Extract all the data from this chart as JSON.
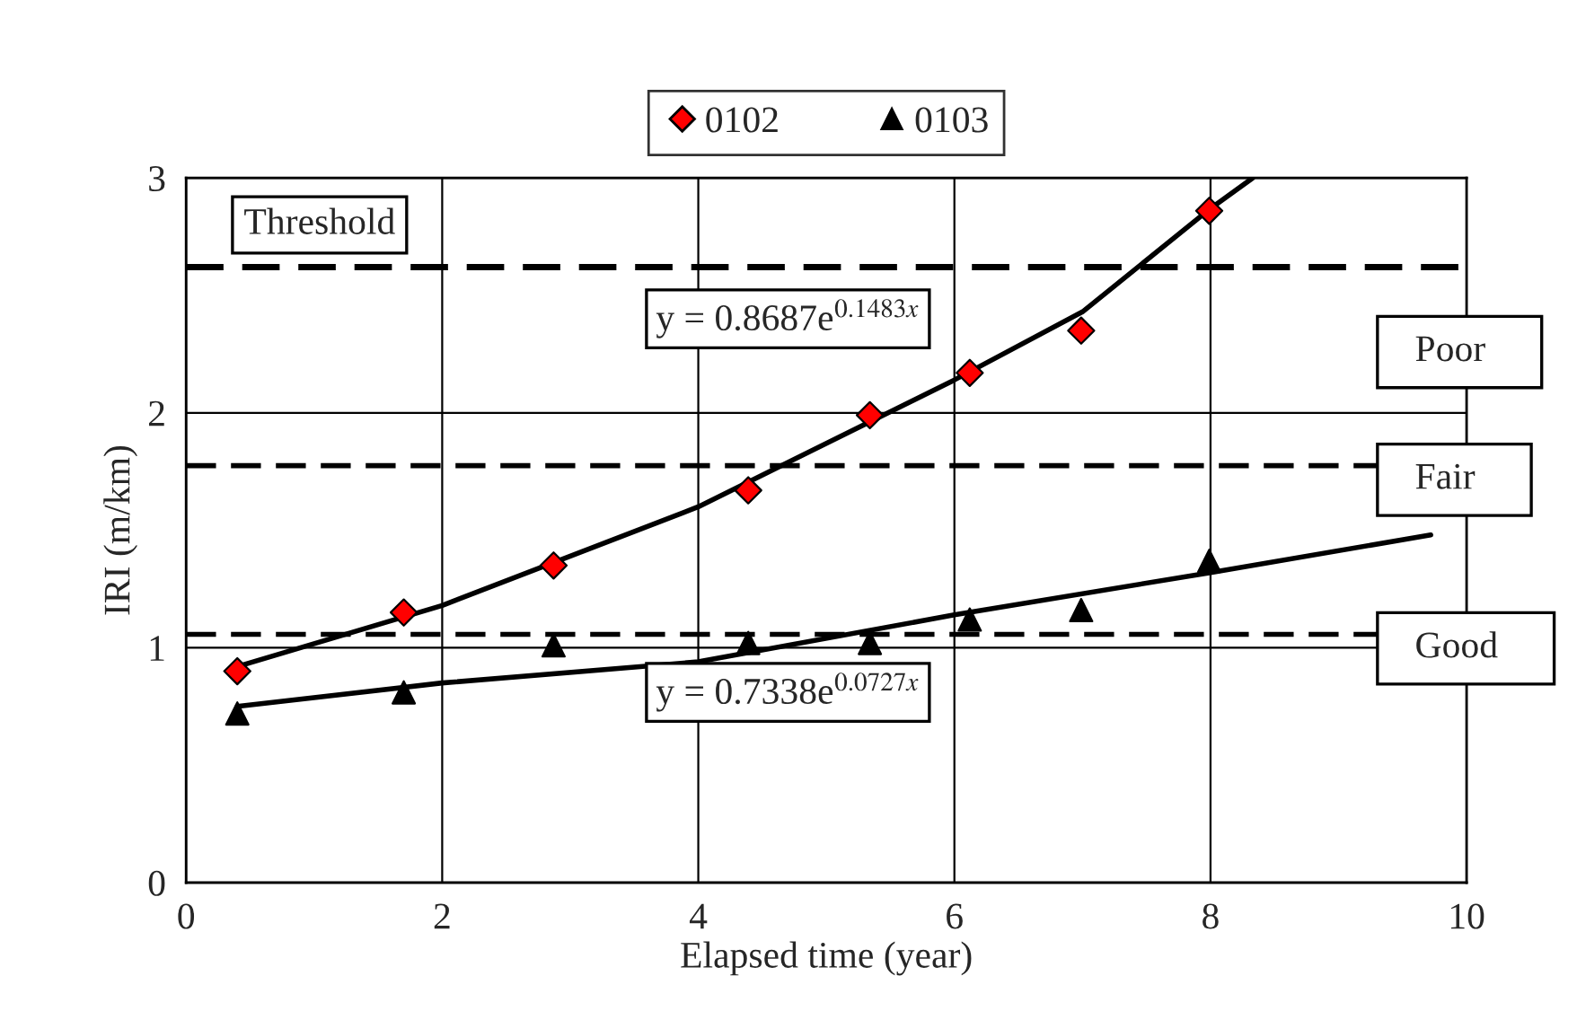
{
  "chart_data": {
    "type": "scatter",
    "xlabel": "Elapsed time (year)",
    "ylabel": "IRI (m/km)",
    "xlim": [
      0,
      10
    ],
    "xticks": [
      0,
      2,
      4,
      6,
      8,
      10
    ],
    "ylim": [
      0,
      3
    ],
    "yticks": [
      0,
      1,
      2,
      3
    ],
    "grid": true,
    "legend": "top",
    "series": [
      {
        "name": "0102",
        "marker": "diamond",
        "color": "#ff0000",
        "x": [
          0.4,
          1.7,
          2.87,
          4.39,
          5.34,
          6.12,
          6.99,
          7.99
        ],
        "values": [
          0.9,
          1.15,
          1.35,
          1.67,
          1.99,
          2.17,
          2.35,
          2.86
        ]
      },
      {
        "name": "0103",
        "marker": "triangle",
        "color": "#000000",
        "x": [
          0.4,
          1.7,
          2.87,
          4.39,
          5.34,
          6.12,
          6.99,
          7.99
        ],
        "values": [
          0.72,
          0.81,
          1.01,
          1.02,
          1.02,
          1.12,
          1.16,
          1.37
        ]
      },
      {
        "type": "line",
        "color": "#000000",
        "x": [
          0.4,
          2,
          4,
          6,
          7,
          8,
          8.33
        ],
        "values": [
          0.92,
          1.18,
          1.6,
          2.14,
          2.43,
          2.87,
          3.0
        ]
      },
      {
        "type": "line",
        "color": "#000000",
        "x": [
          0.4,
          2,
          4,
          6,
          8,
          9.72
        ],
        "values": [
          0.75,
          0.85,
          0.94,
          1.14,
          1.32,
          1.48
        ]
      }
    ],
    "ref_lines": [
      {
        "axis": "y",
        "value": 2.62,
        "label": "Threshold",
        "line_style": "dashed"
      },
      {
        "axis": "y",
        "value": 1.775,
        "label": "Fair",
        "line_style": "dashed"
      },
      {
        "axis": "y",
        "value": 1.057,
        "label": "Good",
        "line_style": "dashed"
      }
    ],
    "annotations": [
      "Poor",
      "y = 0.8687e$^{0.1483x}$",
      "y = 0.7338e$^{0.0727x}$"
    ]
  }
}
